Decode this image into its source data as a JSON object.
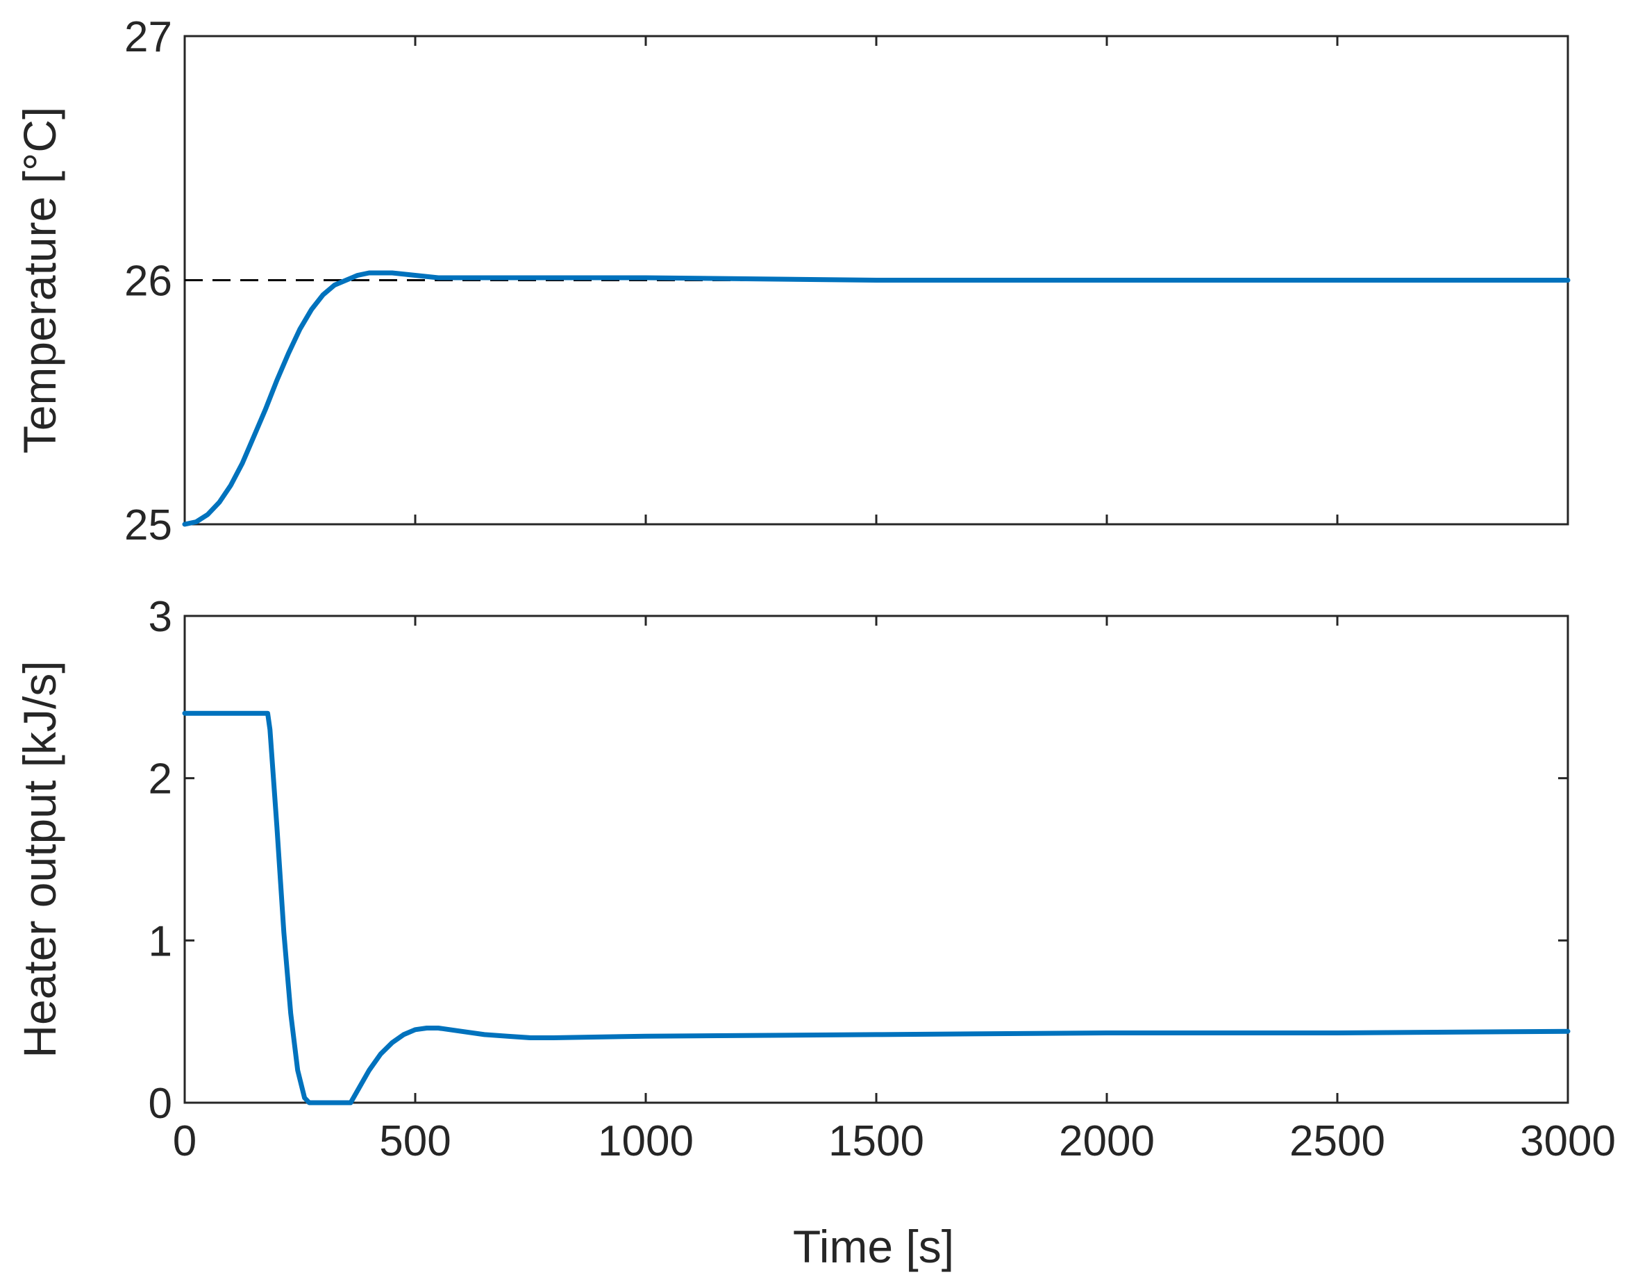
{
  "chart_data": [
    {
      "type": "line",
      "title": "",
      "xlabel": "",
      "ylabel": "Temperature [°C]",
      "xlim": [
        0,
        3000
      ],
      "ylim": [
        25,
        27
      ],
      "xticks": [
        0,
        500,
        1000,
        1500,
        2000,
        2500,
        3000
      ],
      "yticks": [
        25,
        26,
        27
      ],
      "yticklabels": [
        "25",
        "26",
        "27"
      ],
      "grid": false,
      "reference_line": {
        "y": 26,
        "style": "dashed",
        "color": "#000000"
      },
      "series": [
        {
          "color": "#0072BD",
          "x": [
            0,
            25,
            50,
            75,
            100,
            125,
            150,
            175,
            200,
            225,
            250,
            275,
            300,
            325,
            350,
            375,
            400,
            425,
            450,
            500,
            550,
            600,
            700,
            800,
            1000,
            1500,
            2000,
            2500,
            3000
          ],
          "y": [
            25.0,
            25.01,
            25.04,
            25.09,
            25.16,
            25.25,
            25.36,
            25.47,
            25.59,
            25.7,
            25.8,
            25.88,
            25.94,
            25.98,
            26.0,
            26.02,
            26.03,
            26.03,
            26.03,
            26.02,
            26.01,
            26.01,
            26.01,
            26.01,
            26.01,
            26.0,
            26.0,
            26.0,
            26.0
          ]
        }
      ]
    },
    {
      "type": "line",
      "title": "",
      "xlabel": "Time [s]",
      "ylabel": "Heater output [kJ/s]",
      "xlim": [
        0,
        3000
      ],
      "ylim": [
        0,
        3
      ],
      "xticks": [
        0,
        500,
        1000,
        1500,
        2000,
        2500,
        3000
      ],
      "xticklabels": [
        "0",
        "500",
        "1000",
        "1500",
        "2000",
        "2500",
        "3000"
      ],
      "yticks": [
        0,
        1,
        2,
        3
      ],
      "yticklabels": [
        "0",
        "1",
        "2",
        "3"
      ],
      "grid": false,
      "series": [
        {
          "color": "#0072BD",
          "x": [
            0,
            180,
            185,
            200,
            215,
            230,
            245,
            260,
            270,
            360,
            380,
            400,
            425,
            450,
            475,
            500,
            525,
            550,
            575,
            600,
            650,
            700,
            750,
            800,
            1000,
            1500,
            2000,
            2500,
            3000
          ],
          "y": [
            2.4,
            2.4,
            2.3,
            1.7,
            1.05,
            0.55,
            0.2,
            0.03,
            0.0,
            0.0,
            0.1,
            0.2,
            0.3,
            0.37,
            0.42,
            0.45,
            0.46,
            0.46,
            0.45,
            0.44,
            0.42,
            0.41,
            0.4,
            0.4,
            0.41,
            0.42,
            0.43,
            0.43,
            0.44
          ]
        }
      ]
    }
  ]
}
